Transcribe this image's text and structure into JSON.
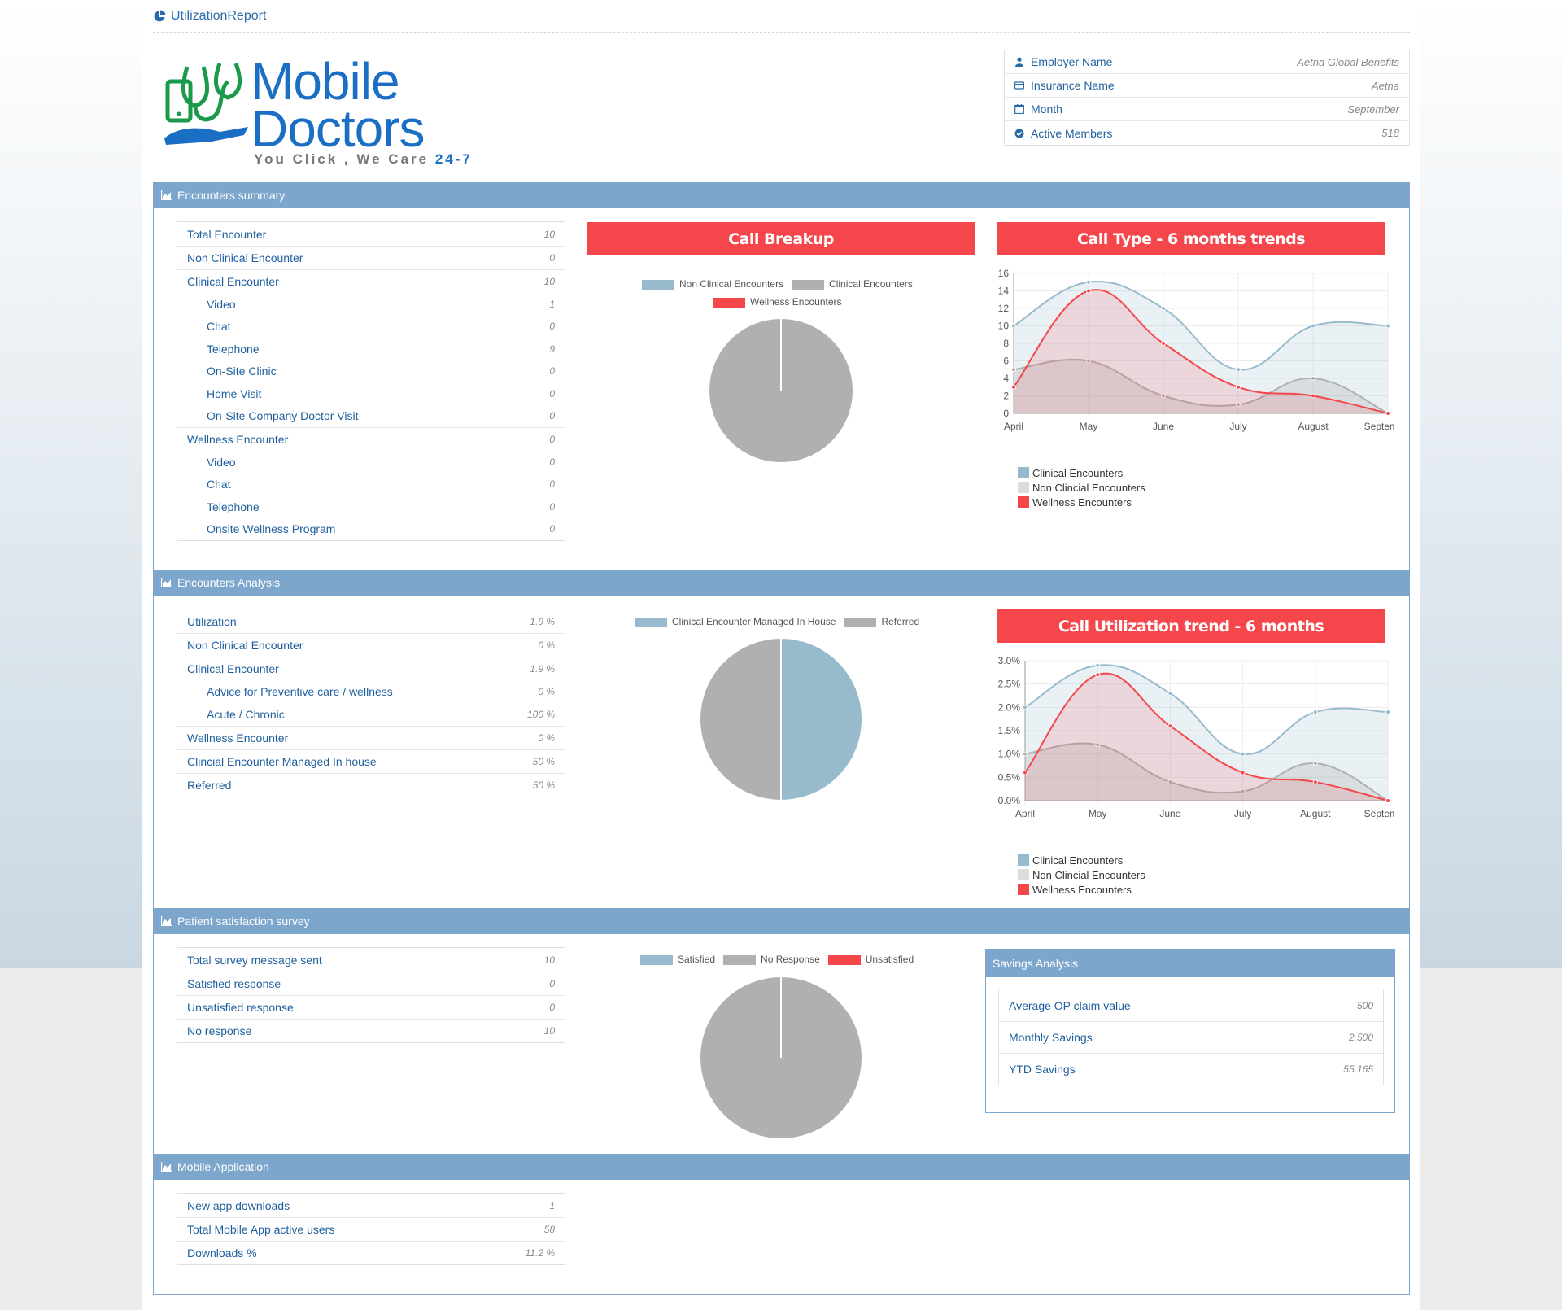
{
  "header": {
    "title": "UtilizationReport",
    "icon": "pie-chart-icon"
  },
  "logo": {
    "word1": "Mobile",
    "word2": "Doctors",
    "tagline_pre": "You Click , We Care ",
    "tagline_post": "24-7"
  },
  "info": [
    {
      "label": "Employer Name",
      "value": "Aetna Global Benefits",
      "icon": "user-icon"
    },
    {
      "label": "Insurance Name",
      "value": "Aetna",
      "icon": "card-icon"
    },
    {
      "label": "Month",
      "value": "September",
      "icon": "calendar-icon"
    },
    {
      "label": "Active Members",
      "value": "518",
      "icon": "check-circle-icon"
    }
  ],
  "sections": {
    "summary": "Encounters summary",
    "analysis": "Encounters Analysis",
    "survey": "Patient satisfaction survey",
    "mobile": "Mobile Application"
  },
  "summary_list": [
    {
      "label": "Total Encounter",
      "value": "10",
      "sub": false
    },
    {
      "label": "Non Clinical Encounter",
      "value": "0",
      "sub": false
    },
    {
      "label": "Clinical Encounter",
      "value": "10",
      "sub": false
    },
    {
      "label": "Video",
      "value": "1",
      "sub": true
    },
    {
      "label": "Chat",
      "value": "0",
      "sub": true
    },
    {
      "label": "Telephone",
      "value": "9",
      "sub": true
    },
    {
      "label": "On-Site Clinic",
      "value": "0",
      "sub": true
    },
    {
      "label": "Home Visit",
      "value": "0",
      "sub": true
    },
    {
      "label": "On-Site Company Doctor Visit",
      "value": "0",
      "sub": true
    },
    {
      "label": "Wellness Encounter",
      "value": "0",
      "sub": false
    },
    {
      "label": "Video",
      "value": "0",
      "sub": true
    },
    {
      "label": "Chat",
      "value": "0",
      "sub": true
    },
    {
      "label": "Telephone",
      "value": "0",
      "sub": true
    },
    {
      "label": "Onsite Wellness Program",
      "value": "0",
      "sub": true
    }
  ],
  "analysis_list": [
    {
      "label": "Utilization",
      "value": "1.9 %",
      "sub": false
    },
    {
      "label": "Non Clinical Encounter",
      "value": "0 %",
      "sub": false
    },
    {
      "label": "Clinical Encounter",
      "value": "1.9 %",
      "sub": false
    },
    {
      "label": "Advice for Preventive care / wellness",
      "value": "0 %",
      "sub": true
    },
    {
      "label": "Acute / Chronic",
      "value": "100 %",
      "sub": true
    },
    {
      "label": "Wellness Encounter",
      "value": "0 %",
      "sub": false
    },
    {
      "label": "Clincial Encounter Managed In house",
      "value": "50 %",
      "sub": false
    },
    {
      "label": "Referred",
      "value": "50 %",
      "sub": false
    }
  ],
  "survey_list": [
    {
      "label": "Total survey message sent",
      "value": "10"
    },
    {
      "label": "Satisfied response",
      "value": "0"
    },
    {
      "label": "Unsatisfied response",
      "value": "0"
    },
    {
      "label": "No response",
      "value": "10"
    }
  ],
  "mobile_list": [
    {
      "label": "New app downloads",
      "value": "1"
    },
    {
      "label": "Total Mobile App active users",
      "value": "58"
    },
    {
      "label": "Downloads %",
      "value": "11.2 %"
    }
  ],
  "savings": {
    "title": "Savings Analysis",
    "rows": [
      {
        "label": "Average OP claim value",
        "value": "500"
      },
      {
        "label": "Monthly Savings",
        "value": "2,500"
      },
      {
        "label": "YTD Savings",
        "value": "55,165"
      }
    ]
  },
  "colors": {
    "clinical": "#97bbcd",
    "nonclinical": "#b0b0b0",
    "wellness": "#f4464b",
    "bar": "#7ca6cb"
  },
  "chart_data": [
    {
      "type": "pie",
      "title": "Call Breakup",
      "labels": [
        "Non Clinical Encounters",
        "Clinical Encounters",
        "Wellness Encounters"
      ],
      "values": [
        0,
        10,
        0
      ],
      "colors": [
        "#97bbcd",
        "#b0b0b0",
        "#f4464b"
      ]
    },
    {
      "type": "line",
      "title": "Call Type - 6 months trends",
      "categories": [
        "April",
        "May",
        "June",
        "July",
        "August",
        "September"
      ],
      "ylim": [
        0,
        16
      ],
      "yticks": [
        "0",
        "2",
        "4",
        "6",
        "8",
        "10",
        "12",
        "14",
        "16"
      ],
      "series": [
        {
          "name": "Clinical Encounters",
          "values": [
            10,
            15,
            12,
            5,
            10,
            10
          ],
          "color": "#97bbcd"
        },
        {
          "name": "Non Clincial Encounters",
          "values": [
            5,
            6,
            2,
            1,
            4,
            0
          ],
          "color": "#b0b0b0"
        },
        {
          "name": "Wellness Encounters",
          "values": [
            3,
            14,
            8,
            3,
            2,
            0
          ],
          "color": "#f4464b"
        }
      ]
    },
    {
      "type": "pie",
      "title": "",
      "labels": [
        "Clinical Encounter Managed In House",
        "Referred"
      ],
      "values": [
        50,
        50
      ],
      "colors": [
        "#97bbcd",
        "#b0b0b0"
      ]
    },
    {
      "type": "line",
      "title": "Call Utilization trend - 6 months",
      "categories": [
        "April",
        "May",
        "June",
        "July",
        "August",
        "September"
      ],
      "ylim": [
        0,
        3.0
      ],
      "yticks": [
        "0.0%",
        "0.5%",
        "1.0%",
        "1.5%",
        "2.0%",
        "2.5%",
        "3.0%"
      ],
      "series": [
        {
          "name": "Clinical Encounters",
          "values": [
            2.0,
            2.9,
            2.3,
            1.0,
            1.9,
            1.9
          ],
          "color": "#97bbcd"
        },
        {
          "name": "Non Clincial Encounters",
          "values": [
            1.0,
            1.2,
            0.4,
            0.2,
            0.8,
            0.0
          ],
          "color": "#b0b0b0"
        },
        {
          "name": "Wellness Encounters",
          "values": [
            0.6,
            2.7,
            1.6,
            0.6,
            0.4,
            0.0
          ],
          "color": "#f4464b"
        }
      ]
    },
    {
      "type": "pie",
      "title": "",
      "labels": [
        "Satisfied",
        "No Response",
        "Unsatisfied"
      ],
      "values": [
        0,
        10,
        0
      ],
      "colors": [
        "#97bbcd",
        "#b0b0b0",
        "#f4464b"
      ]
    }
  ]
}
